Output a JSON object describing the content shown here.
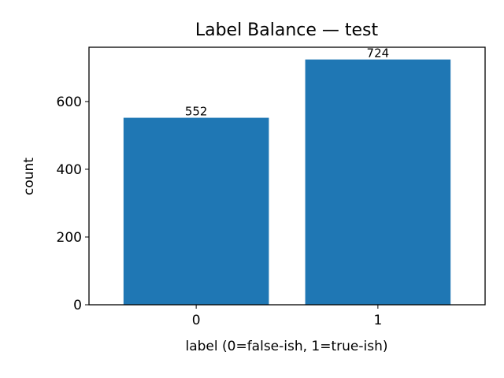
{
  "chart_data": {
    "type": "bar",
    "title": "Label Balance — test",
    "xlabel": "label (0=false-ish, 1=true-ish)",
    "ylabel": "count",
    "categories": [
      "0",
      "1"
    ],
    "values": [
      552,
      724
    ],
    "data_labels": [
      "552",
      "724"
    ],
    "yticks": [
      0,
      200,
      400,
      600
    ],
    "ylim": [
      0,
      760.2
    ],
    "grid": false,
    "bar_color": "#1f77b4"
  }
}
